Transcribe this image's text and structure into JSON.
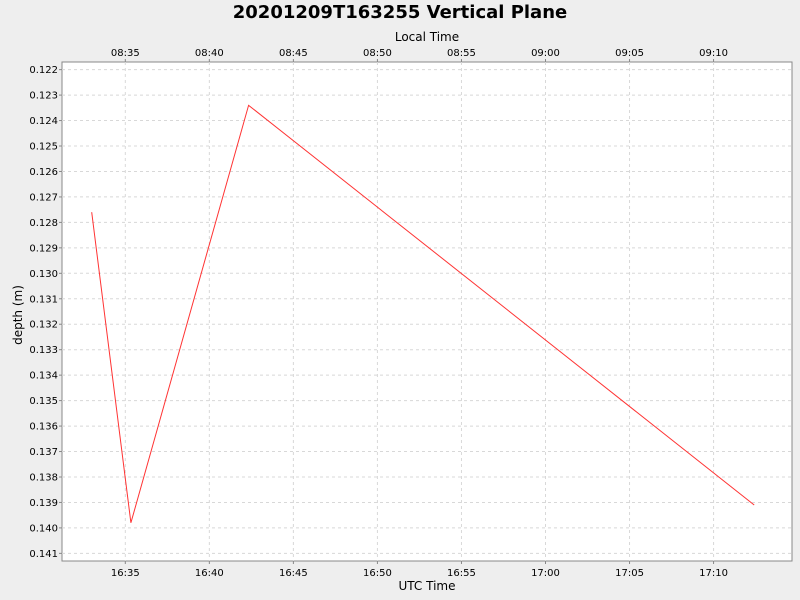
{
  "chart_data": {
    "type": "line",
    "title": "20201209T163255 Vertical Plane",
    "xlabel": "UTC Time",
    "x2label": "Local Time",
    "ylabel": "depth (m)",
    "y_inverted": true,
    "ylim": [
      0.1413,
      0.1217
    ],
    "xlim": [
      "16:31:14",
      "17:14:40"
    ],
    "grid": true,
    "legend": "none",
    "line_color": "#ff3333",
    "x_ticks": [
      "16:35",
      "16:40",
      "16:45",
      "16:50",
      "16:55",
      "17:00",
      "17:05",
      "17:10"
    ],
    "x2_ticks": [
      "08:35",
      "08:40",
      "08:45",
      "08:50",
      "08:55",
      "09:00",
      "09:05",
      "09:10"
    ],
    "y_ticks": [
      "0.122",
      "0.123",
      "0.124",
      "0.125",
      "0.126",
      "0.127",
      "0.128",
      "0.129",
      "0.130",
      "0.131",
      "0.132",
      "0.133",
      "0.134",
      "0.135",
      "0.136",
      "0.137",
      "0.138",
      "0.139",
      "0.140",
      "0.141"
    ],
    "series": [
      {
        "x": [
          "16:33:00",
          "16:35:20",
          "16:42:20",
          "17:12:25"
        ],
        "y": [
          0.1276,
          0.1398,
          0.1234,
          0.1391
        ]
      }
    ]
  }
}
